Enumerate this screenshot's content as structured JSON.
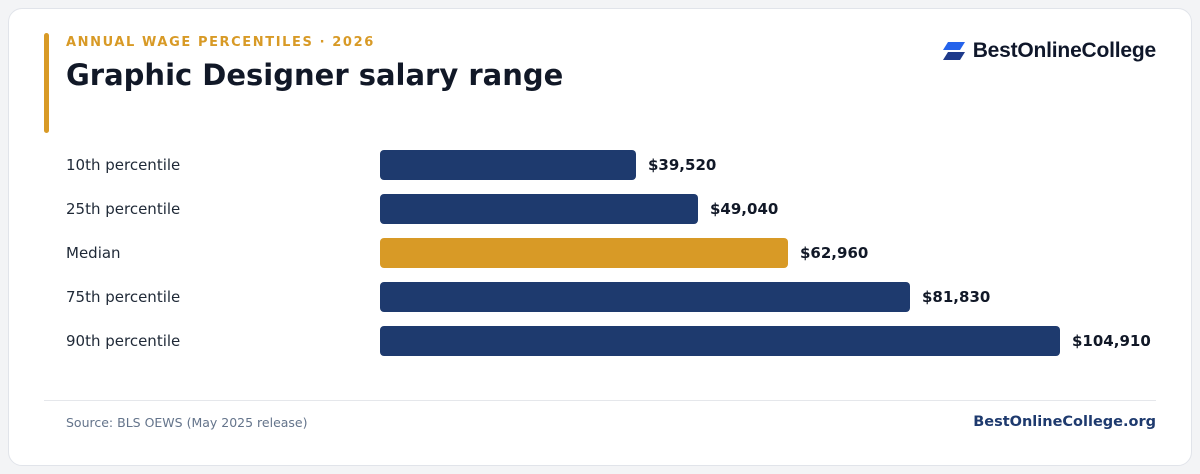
{
  "header": {
    "eyebrow": "ANNUAL WAGE PERCENTILES · 2026",
    "title": "Graphic Designer salary range"
  },
  "brand": {
    "name": "BestOnlineCollege",
    "site": "BestOnlineCollege.org",
    "logo_icon": "stacked-parallelogram-logo-icon"
  },
  "footer": {
    "source": "Source: BLS OEWS (May 2025 release)"
  },
  "colors": {
    "accent": "#d89a26",
    "navy": "#1e3a6e",
    "logo_blue": "#2563eb",
    "logo_dark": "#1e3a8a",
    "text_dark": "#111827"
  },
  "chart_data": {
    "type": "bar",
    "orientation": "horizontal",
    "categories": [
      "10th percentile",
      "25th percentile",
      "Median",
      "75th percentile",
      "90th percentile"
    ],
    "values": [
      39520,
      49040,
      62960,
      81830,
      104910
    ],
    "value_labels": [
      "$39,520",
      "$49,040",
      "$62,960",
      "$81,830",
      "$104,910"
    ],
    "highlight_category": "Median",
    "xlim": [
      0,
      104910
    ],
    "grid": false,
    "legend": "none"
  }
}
